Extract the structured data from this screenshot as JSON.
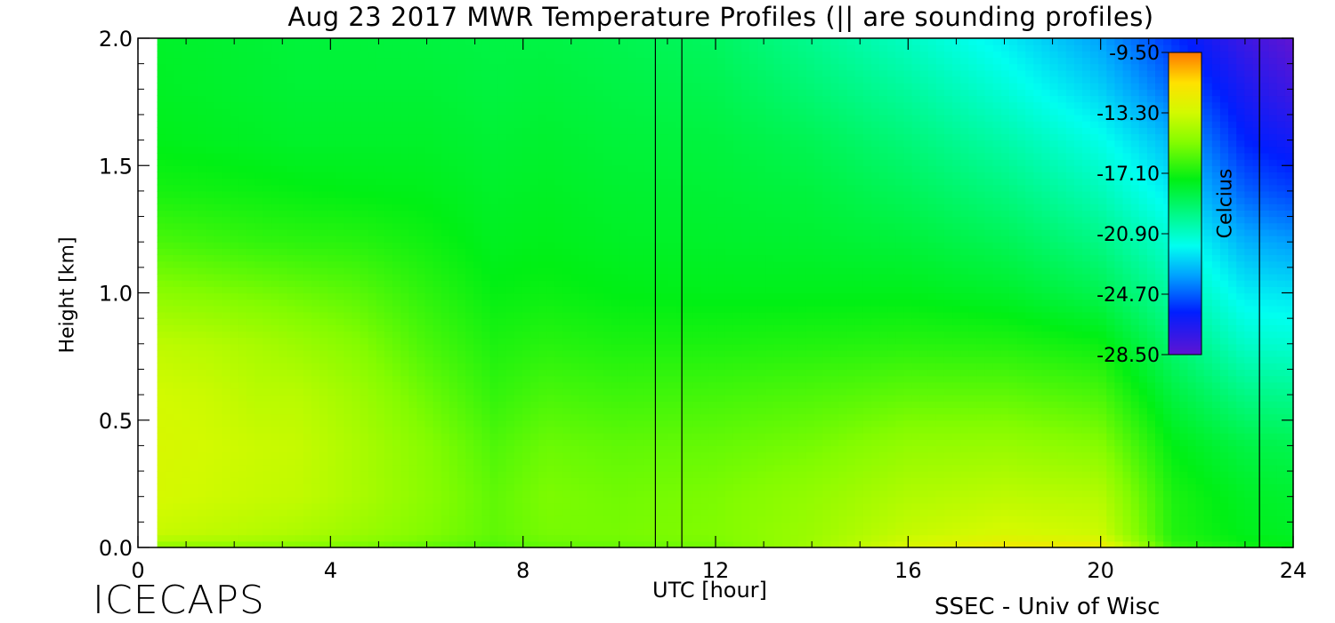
{
  "chart_data": {
    "type": "heatmap",
    "title": "Aug 23 2017 MWR Temperature Profiles (|| are sounding profiles)",
    "xlabel": "UTC [hour]",
    "ylabel": "Height [km]",
    "xlim": [
      0,
      24
    ],
    "ylim": [
      0,
      2.0
    ],
    "xticks": [
      0,
      4,
      8,
      12,
      16,
      20,
      24
    ],
    "xtick_labels": [
      "0",
      "4",
      "8",
      "12",
      "16",
      "20",
      "24"
    ],
    "yticks": [
      0,
      0.5,
      1.0,
      1.5,
      2.0
    ],
    "ytick_labels": [
      "0.0",
      "0.5",
      "1.0",
      "1.5",
      "2.0"
    ],
    "data_xrange": [
      0.4,
      24
    ],
    "color_range": [
      -28.5,
      -9.5
    ],
    "colorbar": {
      "label": "Celcius",
      "ticks": [
        -9.5,
        -13.3,
        -17.1,
        -20.9,
        -24.7,
        -28.5
      ],
      "tick_labels": [
        "-9.50",
        "-13.30",
        "-17.10",
        "-20.90",
        "-24.70",
        "-28.50"
      ]
    },
    "sounding_times": [
      10.75,
      11.3,
      23.3
    ],
    "heights_km": [
      0.0,
      0.05,
      0.2,
      0.4,
      0.6,
      0.8,
      1.0,
      1.2,
      1.4,
      1.6,
      1.8,
      2.0
    ],
    "profiles": [
      {
        "utc": 0.5,
        "temps": [
          -15.0,
          -13.6,
          -13.2,
          -13.1,
          -13.3,
          -13.8,
          -15.0,
          -16.2,
          -17.1,
          -17.6,
          -17.8,
          -17.9
        ]
      },
      {
        "utc": 1.5,
        "temps": [
          -15.0,
          -13.8,
          -13.4,
          -13.3,
          -13.5,
          -14.0,
          -15.2,
          -16.4,
          -17.2,
          -17.7,
          -17.9,
          -18.0
        ]
      },
      {
        "utc": 2.5,
        "temps": [
          -15.1,
          -14.0,
          -13.6,
          -13.5,
          -13.9,
          -14.3,
          -15.4,
          -16.6,
          -17.3,
          -17.8,
          -18.0,
          -18.1
        ]
      },
      {
        "utc": 3.3,
        "temps": [
          -15.2,
          -14.2,
          -13.7,
          -13.6,
          -13.9,
          -14.6,
          -15.6,
          -16.7,
          -17.4,
          -17.9,
          -18.1,
          -18.2
        ]
      },
      {
        "utc": 4.5,
        "temps": [
          -15.4,
          -14.6,
          -14.2,
          -14.2,
          -14.5,
          -15.1,
          -15.9,
          -16.8,
          -17.5,
          -17.9,
          -18.1,
          -18.2
        ]
      },
      {
        "utc": 6.0,
        "temps": [
          -15.8,
          -15.2,
          -15.0,
          -15.1,
          -15.6,
          -16.2,
          -16.7,
          -17.2,
          -17.6,
          -17.9,
          -18.1,
          -18.3
        ]
      },
      {
        "utc": 7.4,
        "temps": [
          -16.2,
          -15.8,
          -15.8,
          -16.1,
          -16.6,
          -17.0,
          -17.4,
          -17.7,
          -17.9,
          -18.1,
          -18.3,
          -18.4
        ]
      },
      {
        "utc": 8.5,
        "temps": [
          -15.8,
          -15.4,
          -15.3,
          -15.6,
          -16.2,
          -16.8,
          -17.3,
          -17.6,
          -17.8,
          -18.0,
          -18.2,
          -18.4
        ]
      },
      {
        "utc": 10.0,
        "temps": [
          -15.7,
          -15.4,
          -15.5,
          -15.8,
          -16.4,
          -17.0,
          -17.5,
          -17.8,
          -18.0,
          -18.2,
          -18.4,
          -18.6
        ]
      },
      {
        "utc": 12.0,
        "temps": [
          -15.5,
          -15.2,
          -15.3,
          -15.7,
          -16.3,
          -17.0,
          -17.6,
          -17.9,
          -18.1,
          -18.3,
          -18.6,
          -18.9
        ]
      },
      {
        "utc": 14.0,
        "temps": [
          -14.5,
          -14.6,
          -14.8,
          -15.4,
          -16.1,
          -16.9,
          -17.6,
          -18.0,
          -18.3,
          -18.7,
          -19.3,
          -19.8
        ]
      },
      {
        "utc": 16.0,
        "temps": [
          -13.0,
          -13.6,
          -14.1,
          -14.8,
          -15.8,
          -16.8,
          -17.6,
          -18.2,
          -18.8,
          -19.4,
          -20.1,
          -20.8
        ]
      },
      {
        "utc": 18.0,
        "temps": [
          -11.9,
          -13.1,
          -13.8,
          -14.7,
          -15.8,
          -16.9,
          -17.9,
          -18.7,
          -19.5,
          -20.3,
          -21.2,
          -22.0
        ]
      },
      {
        "utc": 20.0,
        "temps": [
          -12.0,
          -13.4,
          -14.0,
          -15.1,
          -16.2,
          -17.3,
          -18.6,
          -19.6,
          -20.6,
          -21.5,
          -22.6,
          -23.5
        ]
      },
      {
        "utc": 21.5,
        "temps": [
          -16.5,
          -16.9,
          -17.0,
          -17.5,
          -18.3,
          -19.2,
          -20.2,
          -21.1,
          -22.1,
          -23.1,
          -24.5,
          -25.5
        ]
      },
      {
        "utc": 23.0,
        "temps": [
          -17.2,
          -17.6,
          -17.8,
          -18.4,
          -19.6,
          -20.9,
          -22.0,
          -23.2,
          -24.7,
          -25.8,
          -26.6,
          -27.5
        ]
      },
      {
        "utc": 24.0,
        "temps": [
          -17.4,
          -17.8,
          -18.0,
          -18.6,
          -19.8,
          -21.1,
          -22.2,
          -23.6,
          -25.2,
          -26.4,
          -27.6,
          -28.5
        ]
      }
    ]
  },
  "branding": {
    "logo": "ICECAPS",
    "credit": "SSEC - Univ of Wisc"
  }
}
